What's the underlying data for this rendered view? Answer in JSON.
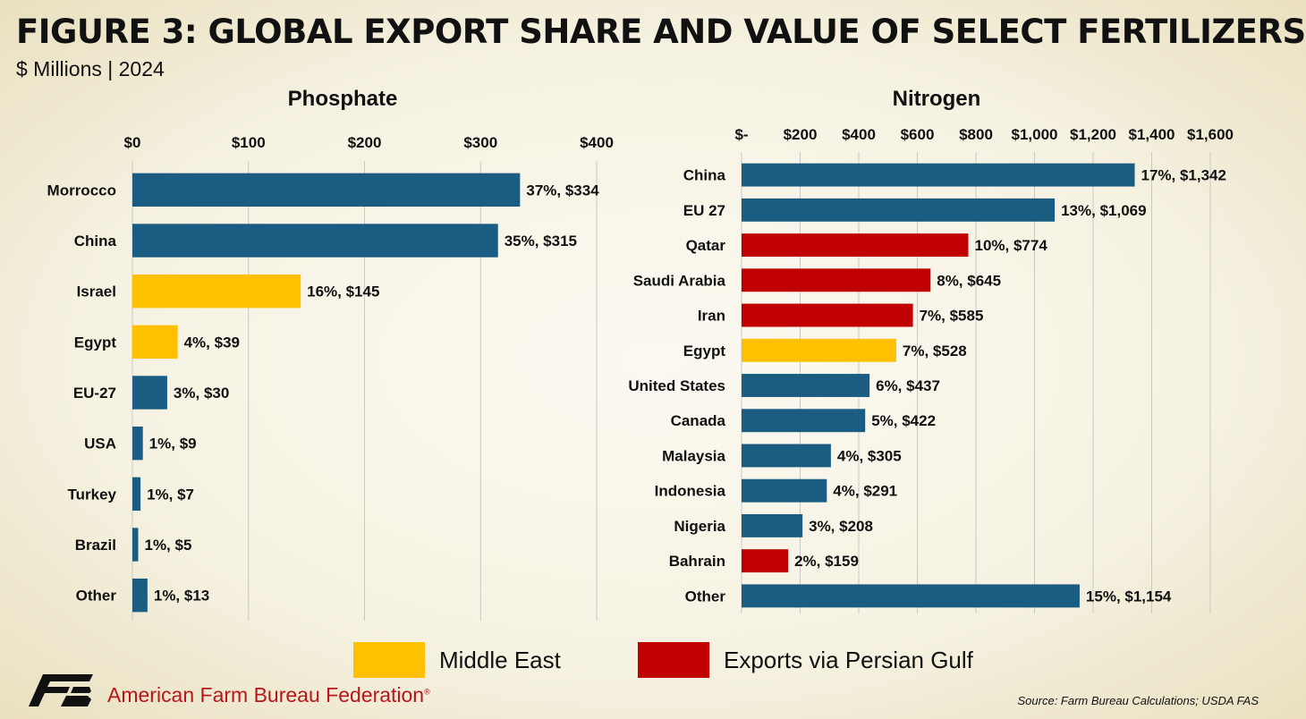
{
  "title": "FIGURE 3: GLOBAL EXPORT SHARE AND VALUE OF SELECT FERTILIZERS",
  "subtitle": "$ Millions | 2024",
  "colors": {
    "default": "#1b5c82",
    "middle_east": "#ffc000",
    "persian_gulf": "#c00000",
    "gridline": "#c8c8c8"
  },
  "legend": [
    {
      "label": "Middle East",
      "color": "#ffc000"
    },
    {
      "label": "Exports via Persian Gulf",
      "color": "#c00000"
    }
  ],
  "chart_data": [
    {
      "type": "bar",
      "orientation": "horizontal",
      "title": "Phosphate",
      "xlim": [
        0,
        400
      ],
      "ticks": [
        0,
        100,
        200,
        300,
        400
      ],
      "tick_labels": [
        "$0",
        "$100",
        "$200",
        "$300",
        "$400"
      ],
      "grid": true,
      "categories": [
        "Morrocco",
        "China",
        "Israel",
        "Egypt",
        "EU-27",
        "USA",
        "Turkey",
        "Brazil",
        "Other"
      ],
      "values": [
        334,
        315,
        145,
        39,
        30,
        9,
        7,
        5,
        13
      ],
      "data_labels": [
        "37%, $334",
        "35%, $315",
        "16%, $145",
        "4%, $39",
        "3%, $30",
        "1%, $9",
        "1%, $7",
        "1%, $5",
        "1%, $13"
      ],
      "groups": [
        "default",
        "default",
        "middle_east",
        "middle_east",
        "default",
        "default",
        "default",
        "default",
        "default"
      ]
    },
    {
      "type": "bar",
      "orientation": "horizontal",
      "title": "Nitrogen",
      "xlim": [
        0,
        1600
      ],
      "ticks": [
        0,
        200,
        400,
        600,
        800,
        1000,
        1200,
        1400,
        1600
      ],
      "tick_labels": [
        "$-",
        "$200",
        "$400",
        "$600",
        "$800",
        "$1,000",
        "$1,200",
        "$1,400",
        "$1,600"
      ],
      "grid": true,
      "categories": [
        "China",
        "EU 27",
        "Qatar",
        "Saudi Arabia",
        "Iran",
        "Egypt",
        "United States",
        "Canada",
        "Malaysia",
        "Indonesia",
        "Nigeria",
        "Bahrain",
        "Other"
      ],
      "values": [
        1342,
        1069,
        774,
        645,
        585,
        528,
        437,
        422,
        305,
        291,
        208,
        159,
        1154
      ],
      "data_labels": [
        "17%, $1,342",
        "13%, $1,069",
        "10%, $774",
        "8%, $645",
        "7%, $585",
        "7%, $528",
        "6%, $437",
        "5%, $422",
        "4%, $305",
        "4%, $291",
        "3%, $208",
        "2%, $159",
        "15%, $1,154"
      ],
      "groups": [
        "default",
        "default",
        "persian_gulf",
        "persian_gulf",
        "persian_gulf",
        "middle_east",
        "default",
        "default",
        "default",
        "default",
        "default",
        "persian_gulf",
        "default"
      ]
    }
  ],
  "footer": {
    "brand": "American Farm Bureau Federation",
    "brand_mark": "®",
    "source": "Source: Farm Bureau Calculations; USDA FAS"
  }
}
